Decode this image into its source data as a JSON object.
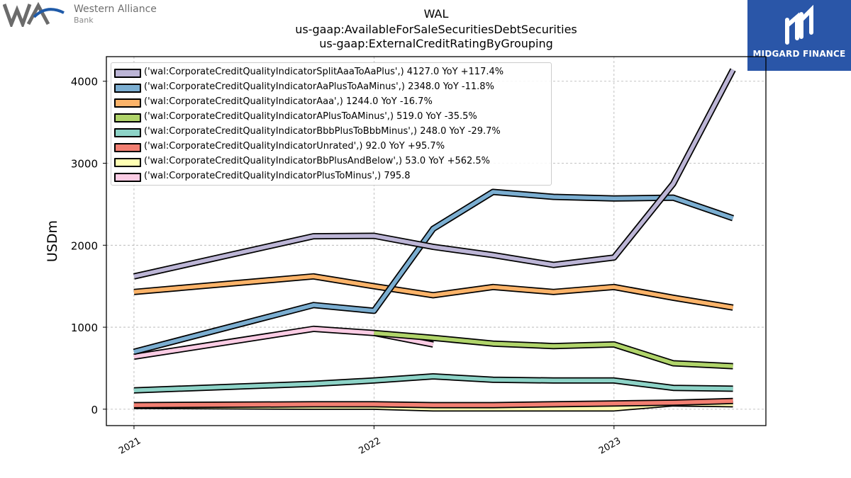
{
  "header": {
    "company_left_line1": "Western Alliance",
    "company_left_line2": "Bank",
    "logo_right_name": "MIDGARD FINANCE",
    "logo_right_color": "#2a56a8"
  },
  "chart_data": {
    "type": "line",
    "title": "WAL",
    "subtitle1": "us-gaap:AvailableForSaleSecuritiesDebtSecurities",
    "subtitle2": "us-gaap:ExternalCreditRatingByGrouping",
    "xlabel": "",
    "ylabel": "USDm",
    "x": [
      "2021-01-01",
      "2021-10-01",
      "2022-01-01",
      "2022-04-01",
      "2022-07-01",
      "2022-10-01",
      "2023-01-01",
      "2023-04-01",
      "2023-07-01"
    ],
    "xticks": [
      "2021",
      "2022",
      "2023"
    ],
    "xtick_positions": [
      "2021-01-01",
      "2022-01-01",
      "2023-01-01"
    ],
    "xlim": [
      "2020-11-20",
      "2023-08-20"
    ],
    "ylim": [
      -200,
      4300
    ],
    "yticks": [
      0,
      1000,
      2000,
      3000,
      4000
    ],
    "grid": true,
    "legend_position": "upper-left",
    "series": [
      {
        "name": "('wal:CorporateCreditQualityIndicatorSplitAaaToAaPlus',) 4127.0 YoY +117.4%",
        "color": "#bcb5d6",
        "values": [
          1620,
          2110,
          2115,
          1980,
          1880,
          1760,
          1850,
          2750,
          4140
        ]
      },
      {
        "name": "('wal:CorporateCreditQualityIndicatorAaPlusToAaMinus',) 2348.0 YoY -11.8%",
        "color": "#7baed1",
        "values": [
          700,
          1270,
          1200,
          2200,
          2650,
          2590,
          2570,
          2580,
          2330
        ]
      },
      {
        "name": "('wal:CorporateCreditQualityIndicatorAaa',) 1244.0 YoY -16.7%",
        "color": "#fbb369",
        "values": [
          1430,
          1620,
          1500,
          1390,
          1490,
          1430,
          1490,
          1360,
          1240
        ]
      },
      {
        "name": "('wal:CorporateCreditQualityIndicatorAPlusToAMinus',) 519.0 YoY -35.5%",
        "color": "#b0d46a",
        "values": [
          null,
          null,
          930,
          870,
          800,
          770,
          790,
          560,
          525
        ]
      },
      {
        "name": "('wal:CorporateCreditQualityIndicatorBbbPlusToBbbMinus',) 248.0 YoY -29.7%",
        "color": "#8dd3c7",
        "values": [
          230,
          310,
          350,
          400,
          360,
          350,
          350,
          260,
          250
        ]
      },
      {
        "name": "('wal:CorporateCreditQualityIndicatorUnrated',) 92.0 YoY +95.7%",
        "color": "#f27f72",
        "values": [
          50,
          60,
          60,
          50,
          50,
          60,
          70,
          80,
          100
        ]
      },
      {
        "name": "('wal:CorporateCreditQualityIndicatorBbPlusAndBelow',) 53.0 YoY +562.5%",
        "color": "#ffffb3",
        "values": [
          40,
          30,
          30,
          10,
          10,
          10,
          10,
          70,
          60
        ]
      },
      {
        "name": "('wal:CorporateCreditQualityIndicatorPlusToMinus',) 795.8",
        "color": "#fbcce4",
        "values": [
          640,
          980,
          930,
          790,
          null,
          null,
          null,
          null,
          null
        ]
      }
    ]
  }
}
